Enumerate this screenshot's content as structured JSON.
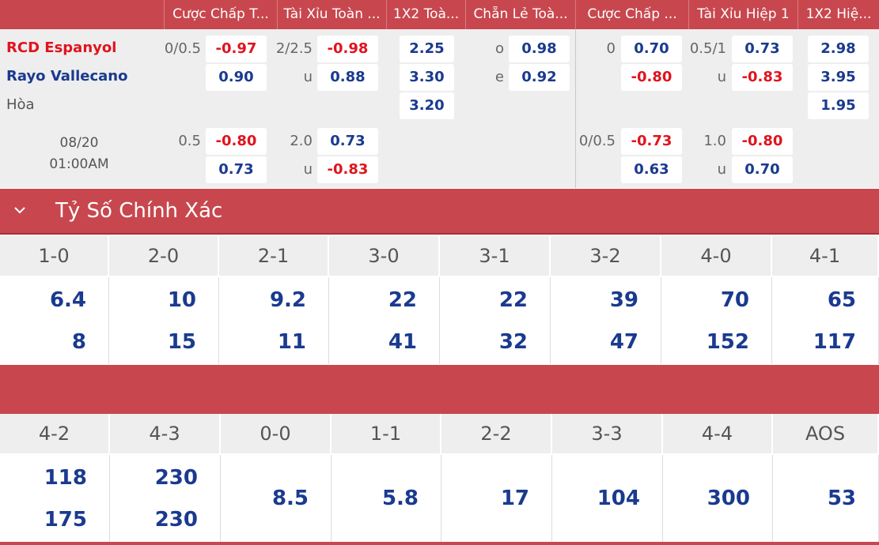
{
  "header": {
    "columns": [
      "Cược Chấp T...",
      "Tài Xỉu Toàn ...",
      "1X2 Toà...",
      "Chẵn Lẻ Toà...",
      "Cược Chấp ...",
      "Tài Xỉu Hiệp 1",
      "1X2 Hiệ..."
    ]
  },
  "match": {
    "home": "RCD Espanyol",
    "away": "Rayo Vallecano",
    "draw": "Hòa",
    "date": "08/20",
    "time": "01:00AM"
  },
  "odds": {
    "main": {
      "hcap_line": "0/0.5",
      "hcap_home": "-0.97",
      "hcap_away": "0.90",
      "ou_line": "2/2.5",
      "ou_over": "-0.98",
      "ou_u_label": "u",
      "ou_under": "0.88",
      "x12_home": "2.25",
      "x12_away": "3.30",
      "x12_draw": "3.20",
      "oe_o_label": "o",
      "oe_odd": "0.98",
      "oe_e_label": "e",
      "oe_even": "0.92",
      "h1_hcap_line": "0",
      "h1_hcap_home": "0.70",
      "h1_hcap_away": "-0.80",
      "h1_ou_line": "0.5/1",
      "h1_ou_over": "0.73",
      "h1_ou_u_label": "u",
      "h1_ou_under": "-0.83",
      "h1_x12_home": "2.98",
      "h1_x12_away": "3.95",
      "h1_x12_draw": "1.95"
    },
    "alt": {
      "hcap_line": "0.5",
      "hcap_home": "-0.80",
      "hcap_away": "0.73",
      "ou_line": "2.0",
      "ou_over": "0.73",
      "ou_u_label": "u",
      "ou_under": "-0.83",
      "h1_hcap_line": "0/0.5",
      "h1_hcap_home": "-0.73",
      "h1_hcap_away": "0.63",
      "h1_ou_line": "1.0",
      "h1_ou_over": "-0.80",
      "h1_ou_u_label": "u",
      "h1_ou_under": "0.70"
    }
  },
  "correct_score": {
    "title": "Tỷ Số Chính Xác",
    "table1": [
      {
        "score": "1-0",
        "top": "6.4",
        "bottom": "8"
      },
      {
        "score": "2-0",
        "top": "10",
        "bottom": "15"
      },
      {
        "score": "2-1",
        "top": "9.2",
        "bottom": "11"
      },
      {
        "score": "3-0",
        "top": "22",
        "bottom": "41"
      },
      {
        "score": "3-1",
        "top": "22",
        "bottom": "32"
      },
      {
        "score": "3-2",
        "top": "39",
        "bottom": "47"
      },
      {
        "score": "4-0",
        "top": "70",
        "bottom": "152"
      },
      {
        "score": "4-1",
        "top": "65",
        "bottom": "117"
      }
    ],
    "table2": [
      {
        "score": "4-2",
        "top": "118",
        "bottom": "175"
      },
      {
        "score": "4-3",
        "top": "230",
        "bottom": "230"
      },
      {
        "score": "0-0",
        "value": "8.5"
      },
      {
        "score": "1-1",
        "value": "5.8"
      },
      {
        "score": "2-2",
        "value": "17"
      },
      {
        "score": "3-3",
        "value": "104"
      },
      {
        "score": "4-4",
        "value": "300"
      },
      {
        "score": "AOS",
        "value": "53"
      }
    ]
  }
}
